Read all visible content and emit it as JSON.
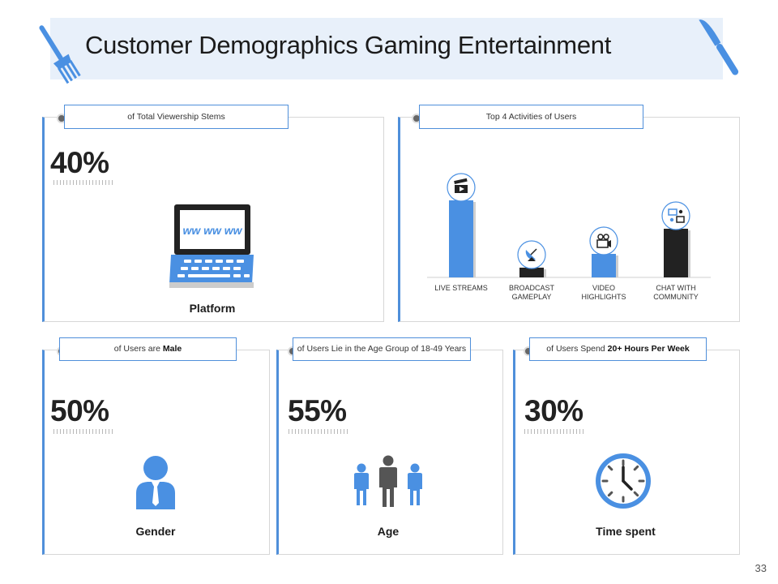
{
  "title": "Customer Demographics Gaming Entertainment",
  "page_number": "33",
  "platform": {
    "tag": "of Total Viewership Stems",
    "percent": "40%",
    "caption": "Platform",
    "screen_text": "ww ww ww",
    "icon": "laptop-icon"
  },
  "activities": {
    "tag": "Top 4 Activities of Users",
    "chart_data": {
      "type": "bar",
      "categories": [
        "LIVE STREAMS",
        "BROADCAST GAMEPLAY",
        "VIDEO HIGHLIGHTS",
        "CHAT WITH COMMUNITY"
      ],
      "label_lines": [
        [
          "LIVE STREAMS"
        ],
        [
          "BROADCAST",
          "GAMEPLAY"
        ],
        [
          "VIDEO",
          "HIGHLIGHTS"
        ],
        [
          "CHAT WITH",
          "COMMUNITY"
        ]
      ],
      "values": [
        95,
        12,
        29,
        60
      ],
      "colors": [
        "#4a90e2",
        "#222222",
        "#4a90e2",
        "#222222"
      ],
      "icons": [
        "clapperboard-icon",
        "satellite-dish-icon",
        "film-camera-icon",
        "chat-network-icon"
      ],
      "title": "",
      "xlabel": "",
      "ylabel": "",
      "ylim": [
        0,
        100
      ],
      "grid": false
    }
  },
  "gender": {
    "tag_prefix": "of Users are",
    "tag_bold": "Male",
    "percent": "50%",
    "caption": "Gender",
    "icon": "businessman-icon"
  },
  "age": {
    "tag": "of Users Lie in the Age Group of 18-49 Years",
    "percent": "55%",
    "caption": "Age",
    "icon": "people-group-icon"
  },
  "time": {
    "tag_prefix": "of Users Spend",
    "tag_bold": "20+ Hours Per Week",
    "percent": "30%",
    "caption": "Time spent",
    "icon": "clock-icon"
  },
  "colors": {
    "accent": "#4f8fda",
    "title_band": "#e8f0fa",
    "dark": "#222222"
  }
}
